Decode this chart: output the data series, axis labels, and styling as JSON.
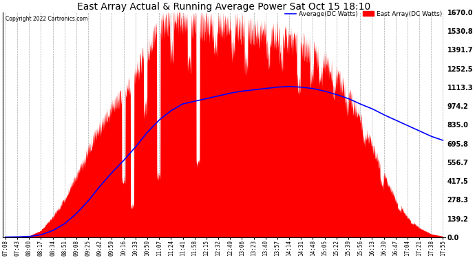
{
  "title": "East Array Actual & Running Average Power Sat Oct 15 18:10",
  "copyright": "Copyright 2022 Cartronics.com",
  "legend_avg": "Average(DC Watts)",
  "legend_east": "East Array(DC Watts)",
  "ylabel_right_ticks": [
    0.0,
    139.2,
    278.3,
    417.5,
    556.7,
    695.8,
    835.0,
    974.2,
    1113.3,
    1252.5,
    1391.7,
    1530.8,
    1670.0
  ],
  "ylim": [
    0,
    1670.0
  ],
  "bg_color": "#ffffff",
  "grid_color": "#aaaaaa",
  "bar_color": "#ff0000",
  "avg_line_color": "#0000ff",
  "title_color": "#000000",
  "copyright_color": "#000000",
  "legend_avg_color": "#0000ff",
  "legend_east_color": "#ff0000",
  "x_labels": [
    "07:08",
    "07:43",
    "08:00",
    "08:17",
    "08:34",
    "08:51",
    "09:08",
    "09:25",
    "09:42",
    "09:59",
    "10:16",
    "10:33",
    "10:50",
    "11:07",
    "11:24",
    "11:41",
    "11:58",
    "12:15",
    "12:32",
    "12:49",
    "13:06",
    "13:23",
    "13:40",
    "13:57",
    "14:14",
    "14:31",
    "14:48",
    "15:05",
    "15:22",
    "15:39",
    "15:56",
    "16:13",
    "16:30",
    "16:47",
    "17:04",
    "17:21",
    "17:38",
    "17:55"
  ],
  "east_base": [
    3,
    5,
    10,
    50,
    150,
    280,
    450,
    650,
    820,
    950,
    1050,
    1200,
    1400,
    1550,
    1630,
    1620,
    1580,
    1560,
    1570,
    1560,
    1540,
    1520,
    1510,
    1490,
    1460,
    1420,
    1380,
    1300,
    1200,
    1050,
    880,
    680,
    460,
    280,
    150,
    70,
    25,
    8
  ],
  "avg_line": [
    2,
    3,
    6,
    18,
    50,
    100,
    175,
    270,
    380,
    480,
    570,
    670,
    780,
    870,
    940,
    990,
    1010,
    1030,
    1050,
    1070,
    1085,
    1095,
    1105,
    1115,
    1120,
    1115,
    1105,
    1085,
    1060,
    1030,
    990,
    955,
    910,
    870,
    830,
    790,
    750,
    720
  ],
  "drop_positions": [
    0.18,
    0.22,
    0.27,
    0.29,
    0.32,
    0.35,
    0.38,
    0.42,
    0.44,
    0.48,
    0.52,
    0.55,
    0.6,
    0.63,
    0.67,
    0.7,
    0.72,
    0.75,
    0.78,
    0.82,
    0.86,
    0.9,
    0.93
  ],
  "drop_depths": [
    0.05,
    0.02,
    0.6,
    0.8,
    0.3,
    0.7,
    0.15,
    0.2,
    0.65,
    0.1,
    0.1,
    0.15,
    0.1,
    0.1,
    0.2,
    0.15,
    0.1,
    0.1,
    0.1,
    0.1,
    0.2,
    0.15,
    0.1
  ]
}
